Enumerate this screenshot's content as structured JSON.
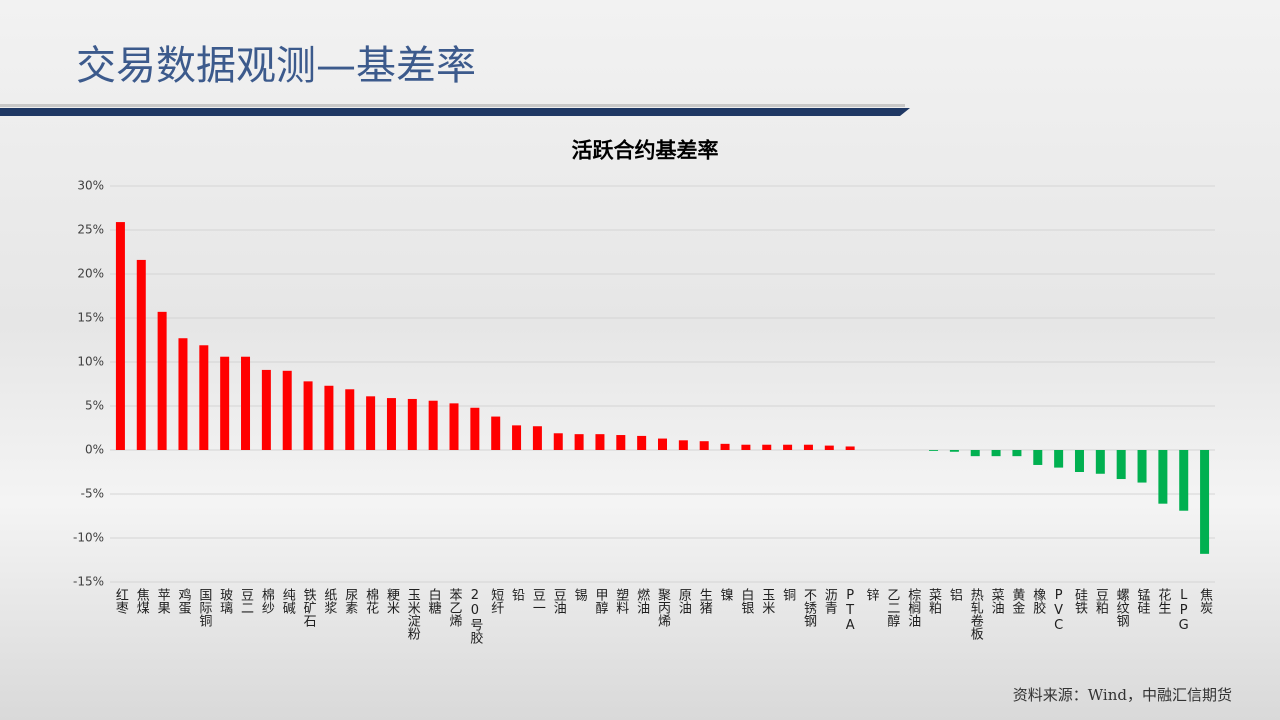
{
  "header": {
    "title": "交易数据观测—基差率"
  },
  "chart_data": {
    "type": "bar",
    "title": "活跃合约基差率",
    "categories": [
      "红枣",
      "焦煤",
      "苹果",
      "鸡蛋",
      "国际铜",
      "玻璃",
      "豆二",
      "棉纱",
      "纯碱",
      "铁矿石",
      "纸浆",
      "尿素",
      "棉花",
      "粳米",
      "玉米淀粉",
      "白糖",
      "苯乙烯",
      "20号胶",
      "短纤",
      "铅",
      "豆一",
      "豆油",
      "锡",
      "甲醇",
      "塑料",
      "燃油",
      "聚丙烯",
      "原油",
      "生猪",
      "镍",
      "白银",
      "玉米",
      "铜",
      "不锈钢",
      "沥青",
      "PTA",
      "锌",
      "乙二醇",
      "棕榈油",
      "菜粕",
      "铝",
      "热轧卷板",
      "菜油",
      "黄金",
      "橡胶",
      "PVC",
      "硅铁",
      "豆粕",
      "螺纹钢",
      "锰硅",
      "花生",
      "LPG",
      "焦炭"
    ],
    "values": [
      25.9,
      21.6,
      15.7,
      12.7,
      11.9,
      10.6,
      10.6,
      9.1,
      9.0,
      7.8,
      7.3,
      6.9,
      6.1,
      5.9,
      5.8,
      5.6,
      5.3,
      4.8,
      3.8,
      2.8,
      2.7,
      1.9,
      1.8,
      1.8,
      1.7,
      1.6,
      1.3,
      1.1,
      1.0,
      0.7,
      0.6,
      0.6,
      0.6,
      0.6,
      0.5,
      0.4,
      0,
      0,
      0,
      -0.1,
      -0.2,
      -0.7,
      -0.7,
      -0.7,
      -1.7,
      -2.0,
      -2.5,
      -2.7,
      -3.3,
      -3.7,
      -6.1,
      -6.9,
      -11.8
    ],
    "positive_color": "#ff0000",
    "negative_color": "#00b050",
    "ylim": [
      -15,
      30
    ],
    "yticks": [
      {
        "value": -15,
        "label": "-15%"
      },
      {
        "value": -10,
        "label": "-10%"
      },
      {
        "value": -5,
        "label": "-5%"
      },
      {
        "value": 0,
        "label": "0%"
      },
      {
        "value": 5,
        "label": "5%"
      },
      {
        "value": 10,
        "label": "10%"
      },
      {
        "value": 15,
        "label": "15%"
      },
      {
        "value": 20,
        "label": "20%"
      },
      {
        "value": 25,
        "label": "25%"
      },
      {
        "value": 30,
        "label": "30%"
      }
    ],
    "grid": true
  },
  "footer": {
    "source": "资料来源：Wind，中融汇信期货"
  }
}
